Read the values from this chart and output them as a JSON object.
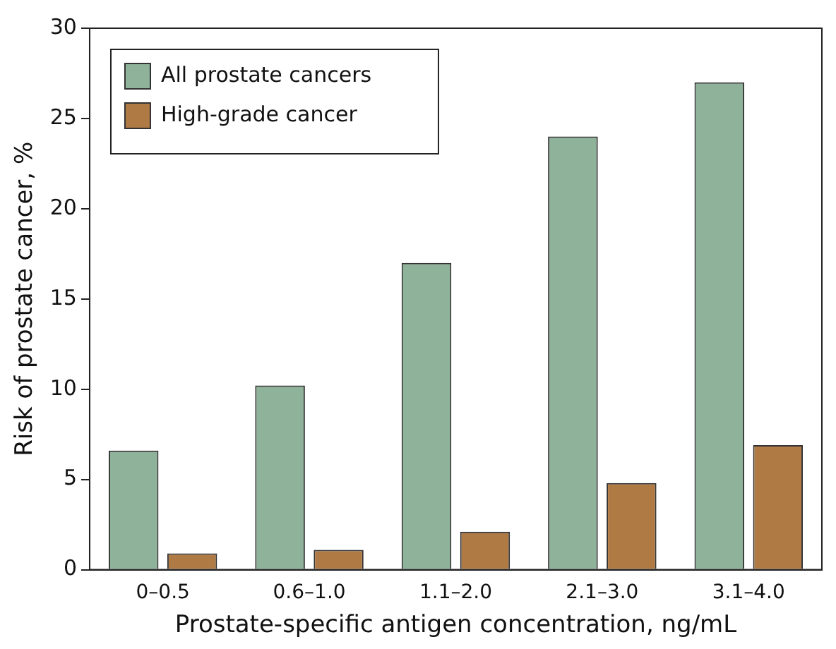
{
  "chart_data": {
    "type": "bar",
    "xlabel": "Prostate-specific antigen concentration, ng/mL",
    "ylabel": "Risk of prostate cancer, %",
    "categories": [
      "0–0.5",
      "0.6–1.0",
      "1.1–2.0",
      "2.1–3.0",
      "3.1–4.0"
    ],
    "series": [
      {
        "name": "All prostate cancers",
        "color": "#8fb39a",
        "values": [
          6.6,
          10.2,
          17.0,
          24.0,
          27.0
        ]
      },
      {
        "name": "High-grade cancer",
        "color": "#b07a45",
        "values": [
          0.9,
          1.1,
          2.1,
          4.8,
          6.9
        ]
      }
    ],
    "ylim": [
      0,
      30
    ],
    "yticks": [
      0,
      5,
      10,
      15,
      20,
      25,
      30
    ],
    "grid": false,
    "legend": "top left"
  }
}
